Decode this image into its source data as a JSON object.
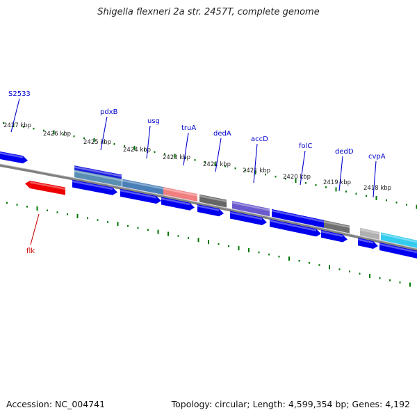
{
  "title": "Shigella flexneri 2a str. 2457T, complete genome",
  "footer": {
    "accession": "Accession: NC_004741",
    "summary": "Topology: circular; Length: 4,599,354 bp; Genes: 4,192"
  },
  "colors": {
    "gene_forward": "#0000ee",
    "gene_reverse": "#ee0000",
    "label_forward": "#0000cc",
    "label_reverse": "#cc0000",
    "tick": "#007700",
    "backbone": "#808080"
  },
  "ruler_labels": [
    "2427 kbp",
    "2426 kbp",
    "2425 kbp",
    "2424 kbp",
    "2423 kbp",
    "2422 kbp",
    "2421 kbp",
    "2420 kbp",
    "2419 kbp",
    "2418 kbp"
  ],
  "gene_labels": [
    {
      "name": "S2533",
      "strand": "forward"
    },
    {
      "name": "pdxB",
      "strand": "forward"
    },
    {
      "name": "usg",
      "strand": "forward"
    },
    {
      "name": "truA",
      "strand": "forward"
    },
    {
      "name": "dedA",
      "strand": "forward"
    },
    {
      "name": "accD",
      "strand": "forward"
    },
    {
      "name": "folC",
      "strand": "forward"
    },
    {
      "name": "dedD",
      "strand": "forward"
    },
    {
      "name": "cvpA",
      "strand": "forward"
    },
    {
      "name": "flk",
      "strand": "reverse"
    }
  ]
}
